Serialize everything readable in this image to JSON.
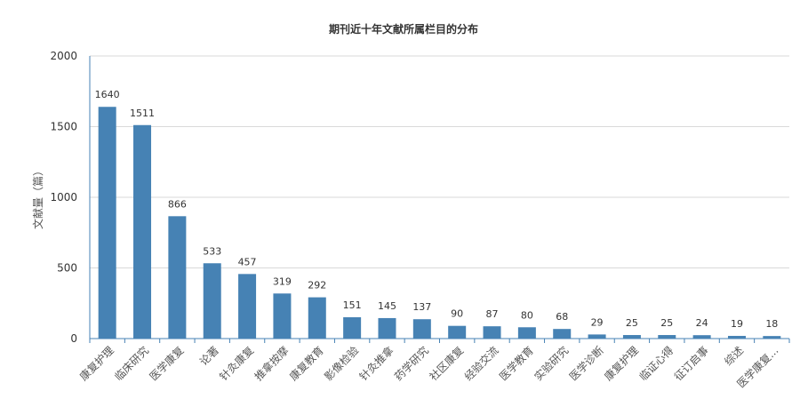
{
  "chart_data": {
    "type": "bar",
    "title": "期刊近十年文献所属栏目的分布",
    "xlabel": "",
    "ylabel": "文献量（篇）",
    "ylim": [
      0,
      2000
    ],
    "yticks": [
      0,
      500,
      1000,
      1500,
      2000
    ],
    "grid": true,
    "bar_color": "#4682b4",
    "categories": [
      "康复护理",
      "临床研究",
      "医学康复",
      "论著",
      "针灸康复",
      "推拿按摩",
      "康复教育",
      "影像检验",
      "针灸推拿",
      "药学研究",
      "社区康复",
      "经验交流",
      "医学教育",
      "实验研究",
      "医学诊断",
      "康复护理",
      "临证心得",
      "征订启事",
      "综述",
      "医学康复..."
    ],
    "values": [
      1640,
      1511,
      866,
      533,
      457,
      319,
      292,
      151,
      145,
      137,
      90,
      87,
      80,
      68,
      29,
      25,
      25,
      24,
      19,
      18
    ]
  }
}
